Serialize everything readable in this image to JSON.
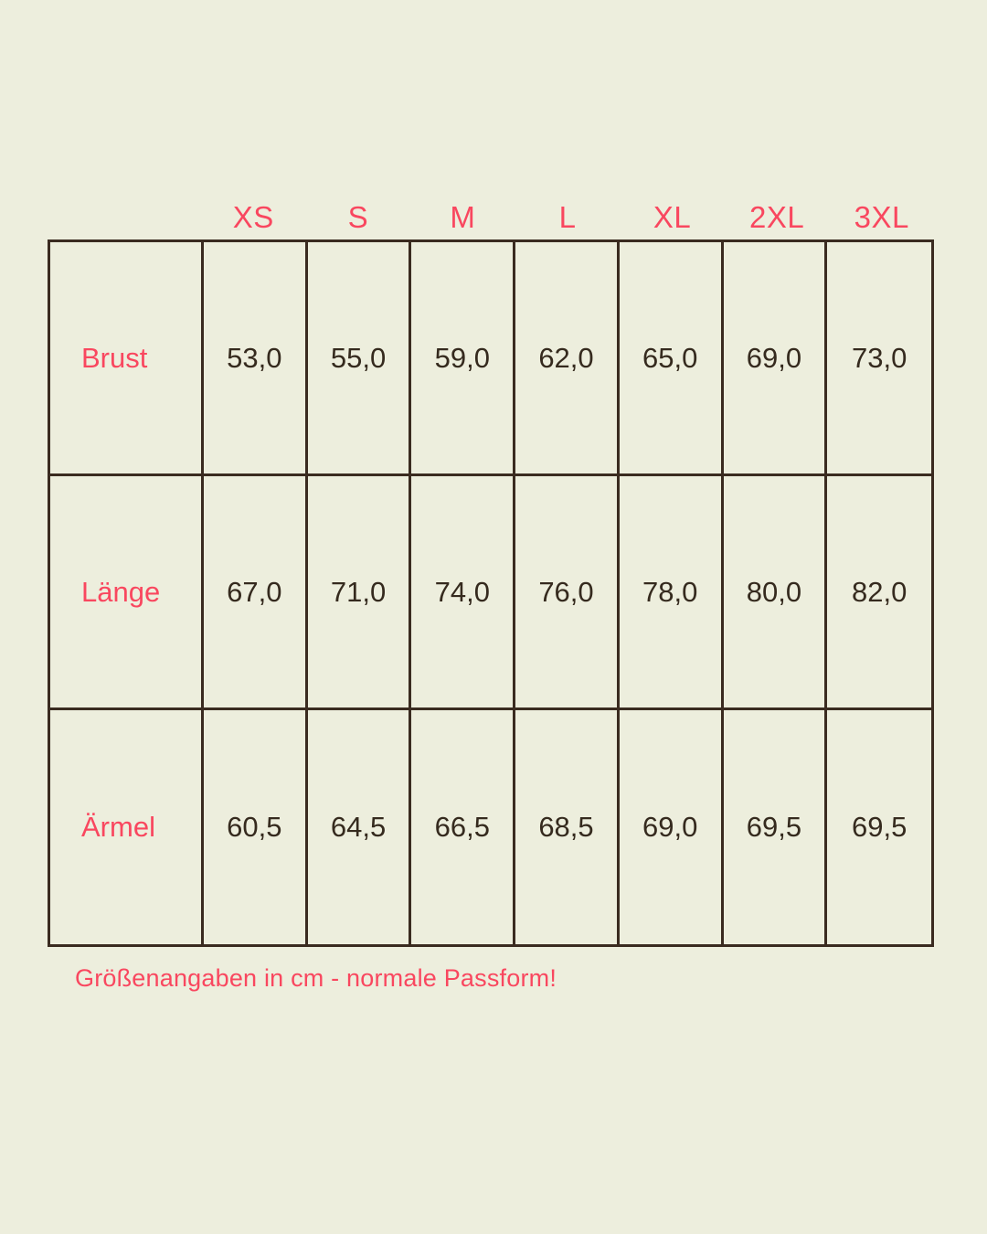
{
  "theme": {
    "background": "#edeedd",
    "accent_pink": "#f9475f",
    "value_text": "#352a1e",
    "grid_line": "#3a2b20"
  },
  "chart_data": {
    "type": "table",
    "title": "",
    "columns": [
      "XS",
      "S",
      "M",
      "L",
      "XL",
      "2XL",
      "3XL"
    ],
    "rows": [
      {
        "label": "Brust",
        "values": [
          "53,0",
          "55,0",
          "59,0",
          "62,0",
          "65,0",
          "69,0",
          "73,0"
        ]
      },
      {
        "label": "Länge",
        "values": [
          "67,0",
          "71,0",
          "74,0",
          "76,0",
          "78,0",
          "80,0",
          "82,0"
        ]
      },
      {
        "label": "Ärmel",
        "values": [
          "60,5",
          "64,5",
          "66,5",
          "68,5",
          "69,0",
          "69,5",
          "69,5"
        ]
      }
    ],
    "footnote": "Größenangaben in cm - normale Passform!",
    "units": "cm",
    "layout_hints": {
      "grid": "on",
      "header_position": "top-outside",
      "label_column": "left"
    }
  }
}
